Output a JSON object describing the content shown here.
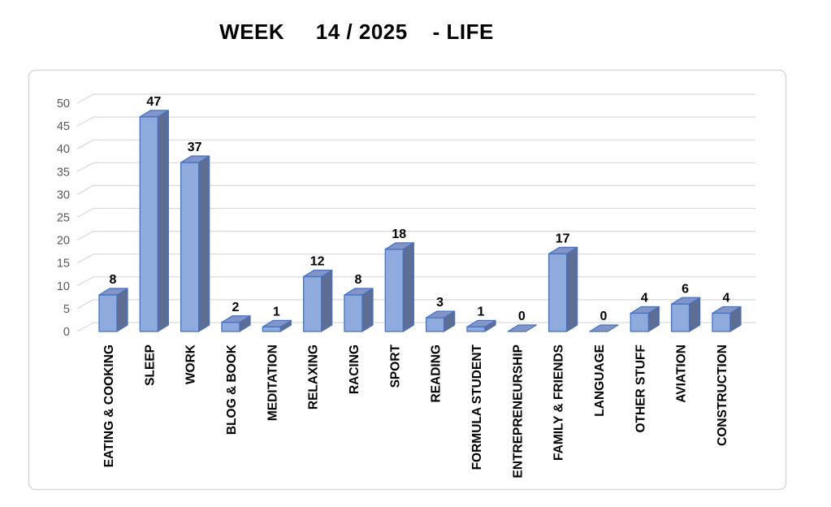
{
  "page": {
    "title": "WEEK     14 / 2025    - LIFE"
  },
  "chart_data": {
    "type": "bar",
    "style": "3d-column",
    "title": "WEEK 14 / 2025 - LIFE",
    "categories": [
      "EATING & COOKING",
      "SLEEP",
      "WORK",
      "BLOG & BOOK",
      "MEDITATION",
      "RELAXING",
      "RACING",
      "SPORT",
      "READING",
      "FORMULA STUDENT",
      "ENTREPRENEURSHIP",
      "FAMILY & FRIENDS",
      "LANGUAGE",
      "OTHER STUFF",
      "AVIATION",
      "CONSTRUCTION"
    ],
    "values": [
      8,
      47,
      37,
      2,
      1,
      12,
      8,
      18,
      3,
      1,
      0,
      17,
      0,
      4,
      6,
      4
    ],
    "data_labels": [
      8,
      47,
      37,
      2,
      1,
      12,
      8,
      18,
      3,
      1,
      0,
      17,
      0,
      4,
      6,
      4
    ],
    "xlabel": "",
    "ylabel": "",
    "ylim": [
      0,
      50
    ],
    "yticks": [
      0,
      5,
      10,
      15,
      20,
      25,
      30,
      35,
      40,
      45,
      50
    ],
    "grid": true,
    "legend_position": "none",
    "colors": {
      "bar_front": "#8FAADC",
      "bar_top": "#8394C6",
      "bar_side": "#5E6D94",
      "bar_border": "#4472C4",
      "gridline": "#D9D9D9",
      "axis_text": "#595959",
      "label_text": "#000000",
      "frame_border": "#D8D8D8"
    }
  }
}
